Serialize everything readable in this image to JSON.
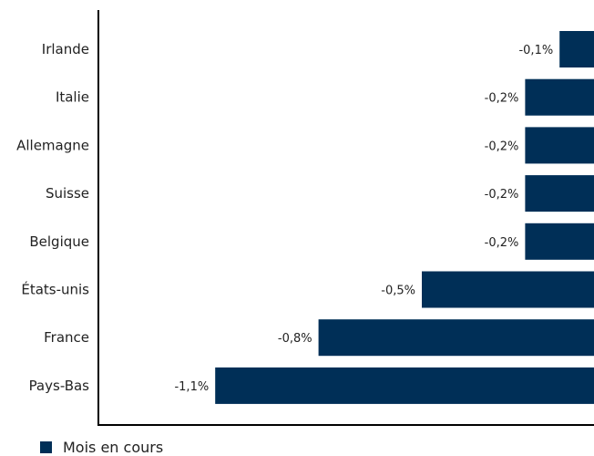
{
  "chart_data": {
    "type": "bar",
    "orientation": "horizontal",
    "categories": [
      "Irlande",
      "Italie",
      "Allemagne",
      "Suisse",
      "Belgique",
      "États-unis",
      "France",
      "Pays-Bas"
    ],
    "series": [
      {
        "name": "Mois en cours",
        "values": [
          -0.1,
          -0.2,
          -0.2,
          -0.2,
          -0.2,
          -0.5,
          -0.8,
          -1.1
        ],
        "value_labels": [
          "-0,1%",
          "-0,2%",
          "-0,2%",
          "-0,2%",
          "-0,2%",
          "-0,5%",
          "-0,8%",
          "-1,1%"
        ],
        "color": "#002f57"
      }
    ],
    "title": "",
    "xlabel": "",
    "ylabel": "",
    "grid": false,
    "legend_position": "bottom-left"
  }
}
